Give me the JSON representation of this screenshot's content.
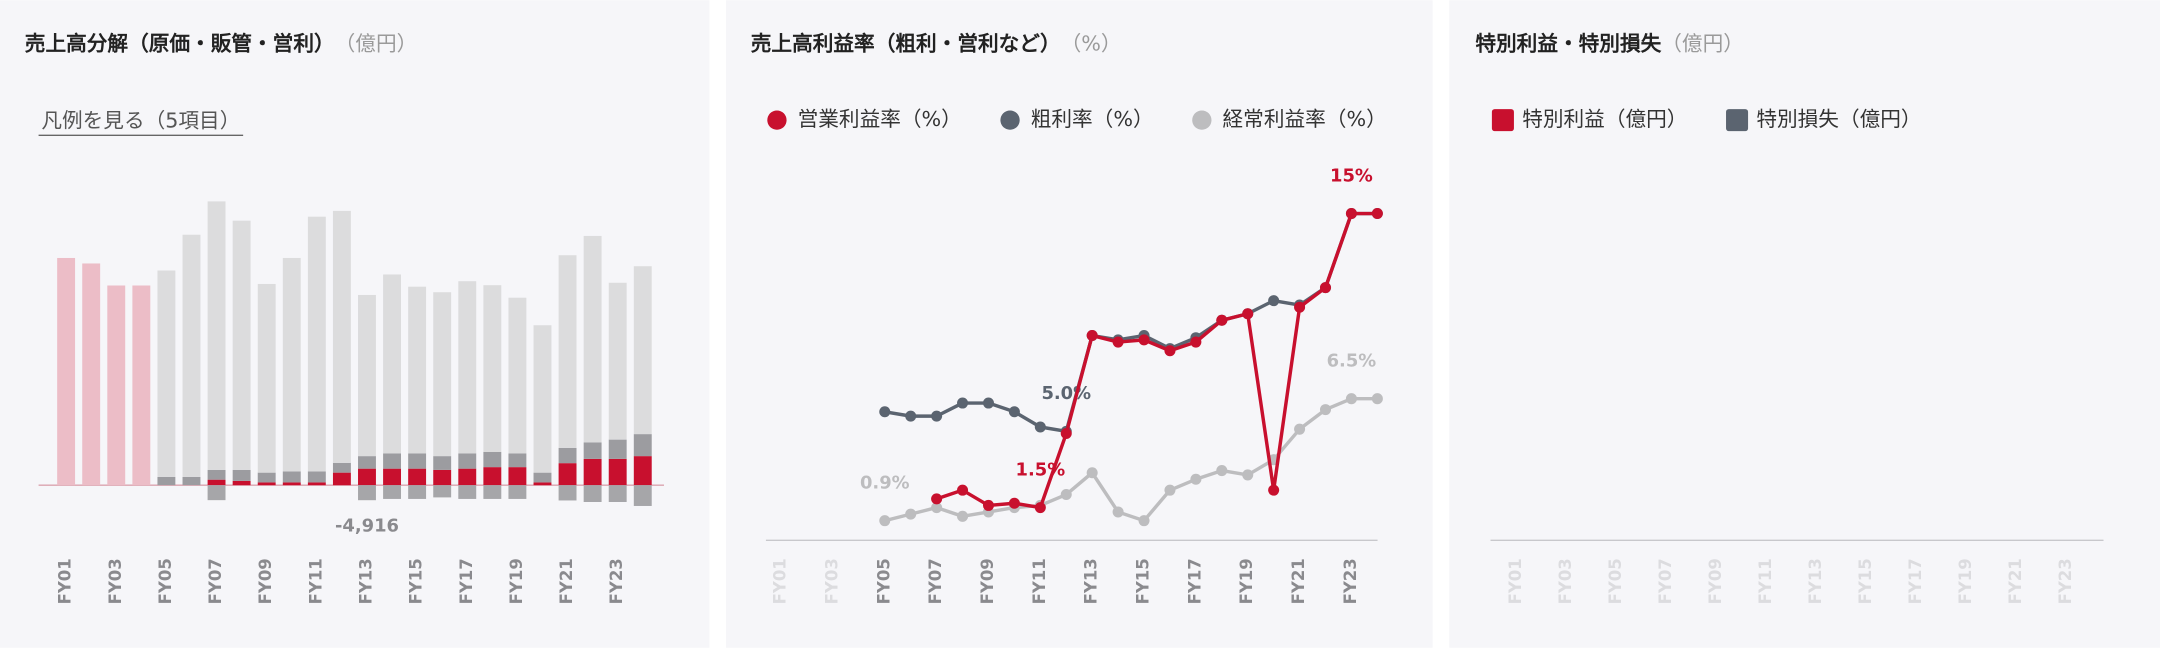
{
  "chart_data": [
    {
      "type": "bar",
      "stacked": true,
      "title": "売上高分解（原価・販管・営利）",
      "unit": "（億円）",
      "legend_toggle": "凡例を見る（5項目）",
      "categories": [
        "FY01",
        null,
        "FY03",
        null,
        "FY05",
        null,
        "FY07",
        null,
        "FY09",
        null,
        "FY11",
        null,
        "FY13",
        null,
        "FY15",
        null,
        "FY17",
        null,
        "FY19",
        null,
        "FY21",
        null,
        "FY23",
        null
      ],
      "series": [
        {
          "color": "#c8102e",
          "values": [
            null,
            null,
            null,
            null,
            null,
            null,
            1800,
            1400,
            900,
            900,
            900,
            4100,
            5400,
            5400,
            5400,
            5000,
            5400,
            5900,
            5900,
            900,
            7200,
            8600,
            8600,
            9500
          ]
        },
        {
          "color": "#9c9ca0",
          "values": [
            null,
            null,
            null,
            null,
            2700,
            2700,
            3200,
            3600,
            3200,
            3600,
            3600,
            3200,
            4100,
            5000,
            5000,
            4500,
            5000,
            5000,
            4500,
            3200,
            5000,
            5400,
            6300,
            7200
          ]
        },
        {
          "color": "#dcdcdd",
          "values": [
            null,
            null,
            null,
            null,
            67500,
            79200,
            87800,
            81500,
            61700,
            69800,
            83300,
            82400,
            52700,
            58500,
            54500,
            53600,
            56300,
            54500,
            50900,
            48200,
            63000,
            67500,
            51300,
            54900
          ]
        },
        {
          "color": "#ecbdc7",
          "values": [
            74300,
            72500,
            65300,
            65300,
            null,
            null,
            null,
            null,
            null,
            null,
            null,
            null,
            null,
            null,
            null,
            null,
            null,
            null,
            null,
            null,
            null,
            null,
            null,
            null
          ]
        },
        {
          "color": "#a6a6a9",
          "values": [
            null,
            null,
            null,
            null,
            null,
            null,
            -4900,
            null,
            null,
            null,
            null,
            null,
            -4916,
            -4500,
            -4500,
            -4000,
            -4500,
            -4500,
            -4500,
            null,
            -5000,
            -5500,
            -5500,
            -6800
          ],
          "value_labels": [
            null,
            null,
            null,
            null,
            null,
            null,
            null,
            null,
            null,
            null,
            null,
            null,
            "-4,916",
            null,
            null,
            null,
            null,
            null,
            null,
            null,
            null,
            null,
            null,
            null
          ]
        }
      ]
    },
    {
      "type": "line",
      "title": "売上高利益率（粗利・営利など）",
      "unit": "（%）",
      "ylim": [
        0,
        16
      ],
      "categories": [
        "FY01",
        null,
        "FY03",
        null,
        "FY05",
        null,
        "FY07",
        null,
        "FY09",
        null,
        "FY11",
        null,
        "FY13",
        null,
        "FY15",
        null,
        "FY17",
        null,
        "FY19",
        null,
        "FY21",
        null,
        "FY23",
        null
      ],
      "series": [
        {
          "name": "営業利益率（%）",
          "color": "#c8102e",
          "values": [
            null,
            null,
            null,
            null,
            null,
            null,
            1.9,
            2.3,
            1.6,
            1.7,
            1.5,
            4.9,
            9.4,
            9.1,
            9.2,
            8.7,
            9.1,
            10.1,
            10.4,
            2.3,
            10.7,
            11.6,
            15,
            15
          ],
          "value_labels": [
            null,
            null,
            null,
            null,
            null,
            null,
            null,
            null,
            null,
            null,
            "1.5%",
            null,
            null,
            null,
            null,
            null,
            null,
            null,
            null,
            null,
            null,
            null,
            "15%",
            null
          ]
        },
        {
          "name": "粗利率（%）",
          "color": "#5b6470",
          "values": [
            null,
            null,
            null,
            null,
            5.9,
            5.7,
            5.7,
            6.3,
            6.3,
            5.9,
            5.2,
            5.0,
            9.4,
            9.2,
            9.4,
            8.8,
            9.3,
            10.1,
            10.4,
            11.0,
            10.8,
            11.6,
            15,
            15
          ],
          "value_labels": [
            null,
            null,
            null,
            null,
            null,
            null,
            null,
            null,
            null,
            null,
            null,
            "5.0%",
            null,
            null,
            null,
            null,
            null,
            null,
            null,
            null,
            null,
            null,
            null,
            null
          ]
        },
        {
          "name": "経常利益率（%）",
          "color": "#bdbdbf",
          "values": [
            null,
            null,
            null,
            null,
            0.9,
            1.2,
            1.5,
            1.1,
            1.3,
            1.5,
            1.6,
            2.1,
            3.1,
            1.3,
            0.9,
            2.3,
            2.8,
            3.2,
            3.0,
            3.7,
            5.1,
            6.0,
            6.5,
            6.5
          ],
          "value_labels": [
            null,
            null,
            null,
            null,
            "0.9%",
            null,
            null,
            null,
            null,
            null,
            null,
            null,
            null,
            null,
            null,
            null,
            null,
            null,
            null,
            null,
            null,
            null,
            "6.5%",
            null
          ]
        }
      ]
    },
    {
      "type": "bar",
      "title": "特別利益・特別損失",
      "unit": "（億円）",
      "categories": [
        "FY01",
        null,
        "FY03",
        null,
        "FY05",
        null,
        "FY07",
        null,
        "FY09",
        null,
        "FY11",
        null,
        "FY13",
        null,
        "FY15",
        null,
        "FY17",
        null,
        "FY19",
        null,
        "FY21",
        null,
        "FY23",
        null
      ],
      "series": [
        {
          "name": "特別利益（億円）",
          "color": "#c8102e",
          "values": [
            null,
            null,
            null,
            null,
            null,
            null,
            null,
            null,
            null,
            null,
            null,
            null,
            null,
            null,
            null,
            null,
            null,
            null,
            null,
            null,
            null,
            null,
            null,
            null
          ]
        },
        {
          "name": "特別損失（億円）",
          "color": "#5b6470",
          "values": [
            null,
            null,
            null,
            null,
            null,
            null,
            null,
            null,
            null,
            null,
            null,
            null,
            null,
            null,
            null,
            null,
            null,
            null,
            null,
            null,
            null,
            null,
            null,
            null
          ]
        }
      ]
    }
  ]
}
